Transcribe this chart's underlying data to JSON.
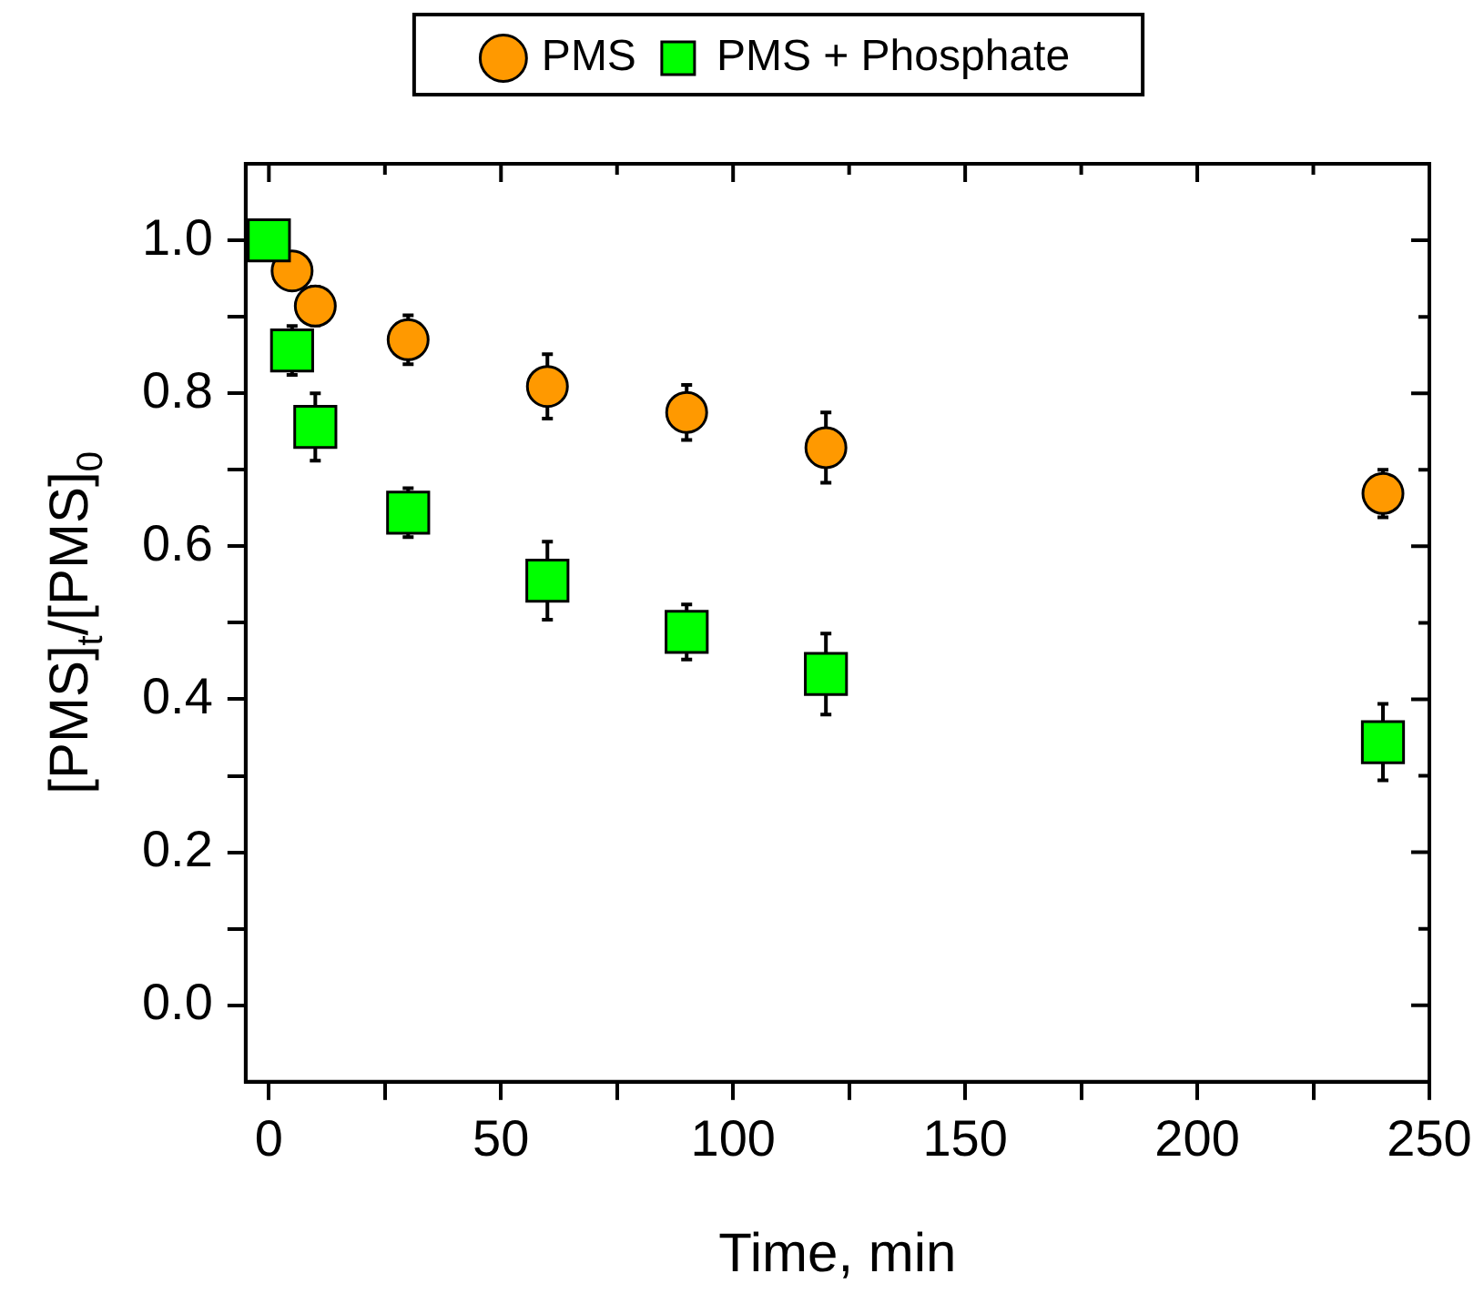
{
  "chart_data": {
    "type": "scatter",
    "xlabel": "Time, min",
    "ylabel": "[PMS]$_{t}$/[PMS]$_{0}$",
    "xlim": [
      -5,
      250
    ],
    "xticks": [
      0,
      {
        "value": 25,
        "label": null
      },
      50,
      {
        "value": 75,
        "label": null
      },
      100,
      {
        "value": 125,
        "label": null
      },
      150,
      {
        "value": 175,
        "label": null
      },
      200,
      {
        "value": 225,
        "label": null
      },
      250
    ],
    "ylim": [
      -0.1,
      1.1
    ],
    "yticks": [
      {
        "value": 0,
        "label": "0.0"
      },
      {
        "value": 0.1,
        "label": null
      },
      0.2,
      {
        "value": 0.3,
        "label": null
      },
      0.4,
      {
        "value": 0.5,
        "label": null
      },
      0.6,
      {
        "value": 0.7,
        "label": null
      },
      0.8,
      {
        "value": 0.9,
        "label": null
      },
      {
        "value": 1,
        "label": "1.0"
      }
    ],
    "grid": false,
    "legend": "top",
    "series": [
      {
        "name": "PMS",
        "color": "#ff9900",
        "marker": "circle",
        "x": [
          5,
          10,
          30,
          60,
          90,
          120,
          240
        ],
        "values": [
          0.96,
          0.914,
          0.87,
          0.809,
          0.775,
          0.729,
          0.669
        ],
        "errors": [
          0.02,
          0.025,
          0.032,
          0.042,
          0.036,
          0.046,
          0.031
        ]
      },
      {
        "name": "PMS + Phosphate",
        "color": "#00ff00",
        "marker": "square",
        "x": [
          0,
          5,
          10,
          30,
          60,
          90,
          120,
          240
        ],
        "values": [
          1.0,
          0.856,
          0.756,
          0.644,
          0.555,
          0.488,
          0.433,
          0.344
        ],
        "errors": [
          null,
          0.032,
          0.044,
          0.032,
          0.051,
          0.036,
          0.053,
          0.05
        ]
      }
    ]
  }
}
